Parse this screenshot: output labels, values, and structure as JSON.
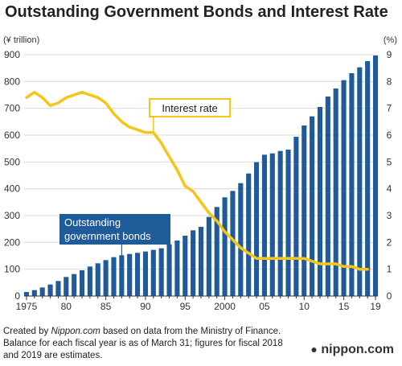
{
  "chart_data": {
    "type": "bar",
    "title": "Outstanding Government Bonds and Interest Rate",
    "ylabel_left": "(¥ trillion)",
    "ylabel_right": "(%)",
    "ylim_left": [
      0,
      900
    ],
    "ylim_right": [
      0,
      9
    ],
    "yticks_left": [
      "0",
      "100",
      "200",
      "300",
      "400",
      "500",
      "600",
      "700",
      "800",
      "900"
    ],
    "yticks_right": [
      "0",
      "1",
      "2",
      "3",
      "4",
      "5",
      "6",
      "7",
      "8",
      "9"
    ],
    "xtick_labels": [
      {
        "year": 1975,
        "label": "1975"
      },
      {
        "year": 1980,
        "label": "80"
      },
      {
        "year": 1985,
        "label": "85"
      },
      {
        "year": 1990,
        "label": "90"
      },
      {
        "year": 1995,
        "label": "95"
      },
      {
        "year": 2000,
        "label": "2000"
      },
      {
        "year": 2005,
        "label": "05"
      },
      {
        "year": 2010,
        "label": "10"
      },
      {
        "year": 2015,
        "label": "15"
      },
      {
        "year": 2019,
        "label": "19"
      }
    ],
    "years": [
      1975,
      1976,
      1977,
      1978,
      1979,
      1980,
      1981,
      1982,
      1983,
      1984,
      1985,
      1986,
      1987,
      1988,
      1989,
      1990,
      1991,
      1992,
      1993,
      1994,
      1995,
      1996,
      1997,
      1998,
      1999,
      2000,
      2001,
      2002,
      2003,
      2004,
      2005,
      2006,
      2007,
      2008,
      2009,
      2010,
      2011,
      2012,
      2013,
      2014,
      2015,
      2016,
      2017,
      2018,
      2019
    ],
    "series": [
      {
        "name": "Outstanding government bonds",
        "type": "bar",
        "axis": "left",
        "color": "#1f5a99",
        "values": [
          15,
          22,
          32,
          43,
          56,
          71,
          82,
          96,
          110,
          122,
          134,
          145,
          152,
          157,
          161,
          166,
          172,
          178,
          193,
          207,
          225,
          245,
          258,
          295,
          332,
          368,
          392,
          421,
          457,
          499,
          527,
          532,
          541,
          546,
          594,
          636,
          670,
          705,
          744,
          774,
          805,
          831,
          853,
          876,
          897
        ]
      },
      {
        "name": "Interest rate",
        "type": "line",
        "axis": "right",
        "color": "#f5c518",
        "values": [
          7.4,
          7.6,
          7.4,
          7.1,
          7.2,
          7.4,
          7.5,
          7.6,
          7.5,
          7.4,
          7.2,
          6.8,
          6.5,
          6.3,
          6.2,
          6.1,
          6.1,
          5.7,
          5.2,
          4.7,
          4.1,
          3.9,
          3.5,
          3.1,
          2.8,
          2.4,
          2.1,
          1.8,
          1.6,
          1.4,
          1.4,
          1.4,
          1.4,
          1.4,
          1.4,
          1.4,
          1.3,
          1.2,
          1.2,
          1.2,
          1.1,
          1.1,
          1.0,
          1.0,
          null
        ]
      }
    ],
    "annotations": {
      "interest_rate": "Interest rate",
      "bonds_line1": "Outstanding",
      "bonds_line2": "government bonds"
    },
    "grid": true
  },
  "footer": {
    "part1": "Created by ",
    "source_name": "Nippon.com",
    "part2": " based on data from the Ministry of Finance. Balance for each fiscal year is as of March 31; figures for fiscal 2018 and 2019 are estimates."
  },
  "logo": {
    "dot": "●",
    "text": "nippon.com"
  },
  "colors": {
    "bar": "#1f5a99",
    "line": "#f5c518",
    "label_box": "#1f5a99",
    "grid": "#d9d9d9"
  }
}
